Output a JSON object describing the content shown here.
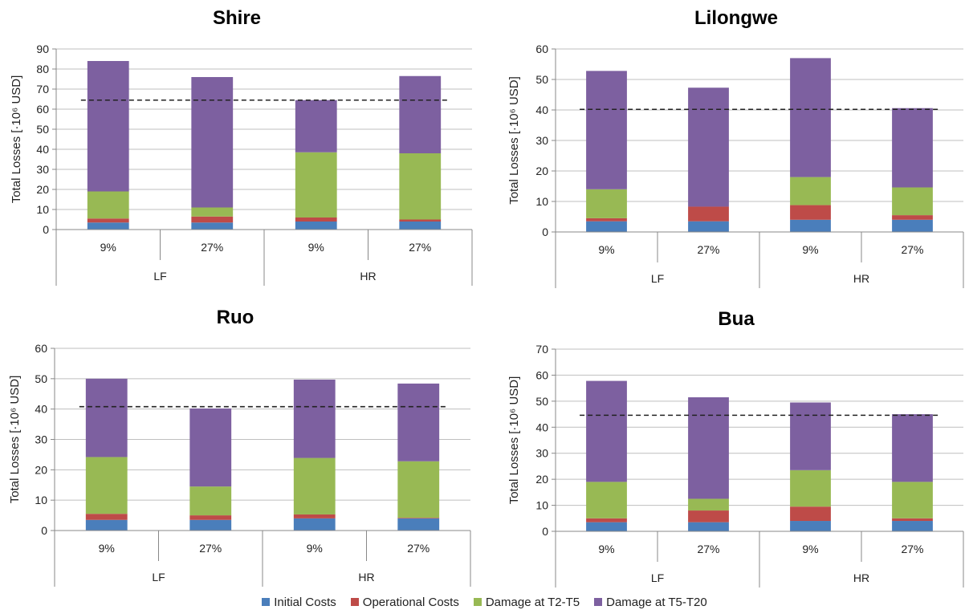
{
  "chart_data": [
    {
      "type": "bar",
      "stacked": true,
      "title": "Shire",
      "ylabel": "Total Losses [·10⁶ USD]",
      "ylim": [
        0,
        90
      ],
      "yticks": [
        0,
        10,
        20,
        30,
        40,
        50,
        60,
        70,
        80,
        90
      ],
      "categories": [
        "9%",
        "27%",
        "9%",
        "27%"
      ],
      "groups": [
        {
          "label": "LF",
          "span": 2
        },
        {
          "label": "HR",
          "span": 2
        }
      ],
      "series": [
        {
          "name": "Initial Costs",
          "values": [
            3.5,
            3.5,
            4,
            4
          ]
        },
        {
          "name": "Operational Costs",
          "values": [
            2,
            3,
            2,
            1
          ]
        },
        {
          "name": "Damage at T2-T5",
          "values": [
            13.5,
            4.5,
            32.5,
            33
          ]
        },
        {
          "name": "Damage at T5-T20",
          "values": [
            65,
            65,
            26,
            38.5
          ]
        }
      ],
      "reference_line": 64.5
    },
    {
      "type": "bar",
      "stacked": true,
      "title": "Lilongwe",
      "ylabel": "Total Losses [·10⁶ USD]",
      "ylim": [
        0,
        60
      ],
      "yticks": [
        0,
        10,
        20,
        30,
        40,
        50,
        60
      ],
      "categories": [
        "9%",
        "27%",
        "9%",
        "27%"
      ],
      "groups": [
        {
          "label": "LF",
          "span": 2
        },
        {
          "label": "HR",
          "span": 2
        }
      ],
      "series": [
        {
          "name": "Initial Costs",
          "values": [
            3.5,
            3.5,
            4,
            4
          ]
        },
        {
          "name": "Operational Costs",
          "values": [
            1,
            4.8,
            4.8,
            1.5
          ]
        },
        {
          "name": "Damage at T2-T5",
          "values": [
            9.5,
            0,
            9.2,
            9.1
          ]
        },
        {
          "name": "Damage at T5-T20",
          "values": [
            38.8,
            39,
            39,
            26
          ]
        }
      ],
      "reference_line": 40.2
    },
    {
      "type": "bar",
      "stacked": true,
      "title": "Ruo",
      "ylabel": "Total Losses [·10⁶ USD]",
      "ylim": [
        0,
        60
      ],
      "yticks": [
        0,
        10,
        20,
        30,
        40,
        50,
        60
      ],
      "categories": [
        "9%",
        "27%",
        "9%",
        "27%"
      ],
      "groups": [
        {
          "label": "LF",
          "span": 2
        },
        {
          "label": "HR",
          "span": 2
        }
      ],
      "series": [
        {
          "name": "Initial Costs",
          "values": [
            3.5,
            3.5,
            4,
            4
          ]
        },
        {
          "name": "Operational Costs",
          "values": [
            2,
            1.5,
            1.3,
            0.2
          ]
        },
        {
          "name": "Damage at T2-T5",
          "values": [
            18.7,
            9.5,
            18.6,
            18.6
          ]
        },
        {
          "name": "Damage at T5-T20",
          "values": [
            25.8,
            25.7,
            25.8,
            25.6
          ]
        }
      ],
      "reference_line": 40.8
    },
    {
      "type": "bar",
      "stacked": true,
      "title": "Bua",
      "ylabel": "Total Losses [·10⁶ USD]",
      "ylim": [
        0,
        70
      ],
      "yticks": [
        0,
        10,
        20,
        30,
        40,
        50,
        60,
        70
      ],
      "categories": [
        "9%",
        "27%",
        "9%",
        "27%"
      ],
      "groups": [
        {
          "label": "LF",
          "span": 2
        },
        {
          "label": "HR",
          "span": 2
        }
      ],
      "series": [
        {
          "name": "Initial Costs",
          "values": [
            3.5,
            3.5,
            4,
            4
          ]
        },
        {
          "name": "Operational Costs",
          "values": [
            1.5,
            4.5,
            5.5,
            1
          ]
        },
        {
          "name": "Damage at T2-T5",
          "values": [
            14,
            4.5,
            14,
            14
          ]
        },
        {
          "name": "Damage at T5-T20",
          "values": [
            38.8,
            39,
            26,
            26
          ]
        }
      ],
      "reference_line": 44.6
    }
  ],
  "legend": [
    {
      "label": "Initial Costs",
      "color": "#4a7ebb"
    },
    {
      "label": "Operational Costs",
      "color": "#be4b48"
    },
    {
      "label": "Damage at T2-T5",
      "color": "#98b954"
    },
    {
      "label": "Damage at T5-T20",
      "color": "#7d60a0"
    }
  ],
  "colors": {
    "grid": "#bfbfbf",
    "axis": "#888888",
    "reference_line": "#222222"
  }
}
